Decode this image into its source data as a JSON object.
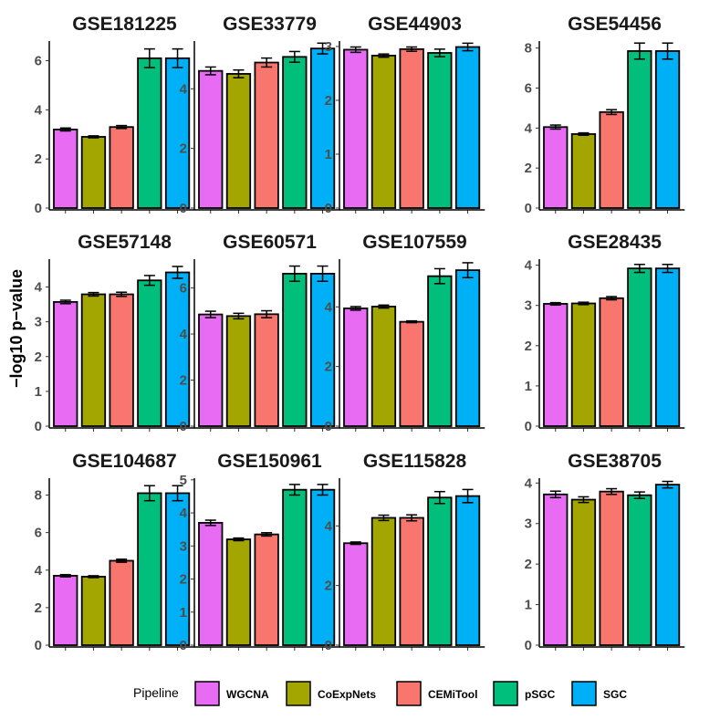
{
  "chart_data": {
    "type": "bar",
    "ylabel": "−log10 p−value",
    "legend": {
      "title": "Pipeline",
      "position": "bottom",
      "items": [
        {
          "name": "WGCNA",
          "color": "#E76BF3"
        },
        {
          "name": "CoExpNets",
          "color": "#A3A500"
        },
        {
          "name": "CEMiTool",
          "color": "#F8766D"
        },
        {
          "name": "pSGC",
          "color": "#00BF7D"
        },
        {
          "name": "SGC",
          "color": "#00B0F6"
        }
      ]
    },
    "panels": [
      {
        "title": "GSE181225",
        "ylim": [
          0,
          6.8
        ],
        "ticks": [
          0,
          2,
          4,
          6
        ],
        "values": [
          3.2,
          2.9,
          3.3,
          6.1,
          6.1
        ],
        "errors": [
          0.06,
          0.04,
          0.06,
          0.38,
          0.38
        ]
      },
      {
        "title": "GSE33779",
        "ylim": [
          0,
          5.6
        ],
        "ticks": [
          0,
          2,
          4
        ],
        "values": [
          4.6,
          4.5,
          4.88,
          5.07,
          5.35
        ],
        "errors": [
          0.13,
          0.13,
          0.15,
          0.18,
          0.18
        ]
      },
      {
        "title": "GSE44903",
        "ylim": [
          0,
          3.1
        ],
        "ticks": [
          0,
          1,
          2,
          3
        ],
        "values": [
          2.94,
          2.83,
          2.95,
          2.88,
          2.99
        ],
        "errors": [
          0.05,
          0.03,
          0.04,
          0.07,
          0.07
        ]
      },
      {
        "title": "GSE54456",
        "ylim": [
          0,
          8.35
        ],
        "ticks": [
          0,
          2,
          4,
          6,
          8
        ],
        "values": [
          4.05,
          3.7,
          4.8,
          7.85,
          7.85
        ],
        "errors": [
          0.1,
          0.06,
          0.12,
          0.4,
          0.4
        ]
      },
      {
        "title": "GSE57148",
        "ylim": [
          0,
          4.8
        ],
        "ticks": [
          0,
          1,
          2,
          3,
          4
        ],
        "values": [
          3.57,
          3.79,
          3.79,
          4.19,
          4.42
        ],
        "errors": [
          0.05,
          0.05,
          0.06,
          0.14,
          0.17
        ]
      },
      {
        "title": "GSE60571",
        "ylim": [
          0,
          7.25
        ],
        "ticks": [
          0,
          2,
          4,
          6
        ],
        "values": [
          4.85,
          4.78,
          4.86,
          6.62,
          6.62
        ],
        "errors": [
          0.14,
          0.12,
          0.15,
          0.33,
          0.33
        ]
      },
      {
        "title": "GSE107559",
        "ylim": [
          0,
          5.6
        ],
        "ticks": [
          0,
          2,
          4
        ],
        "values": [
          3.95,
          4.01,
          3.5,
          5.03,
          5.23
        ],
        "errors": [
          0.06,
          0.05,
          0.03,
          0.25,
          0.25
        ]
      },
      {
        "title": "GSE28435",
        "ylim": [
          0,
          4.15
        ],
        "ticks": [
          0,
          1,
          2,
          3,
          4
        ],
        "values": [
          3.04,
          3.05,
          3.18,
          3.92,
          3.92
        ],
        "errors": [
          0.03,
          0.03,
          0.04,
          0.1,
          0.1
        ]
      },
      {
        "title": "GSE104687",
        "ylim": [
          0,
          8.9
        ],
        "ticks": [
          0,
          2,
          4,
          6,
          8
        ],
        "values": [
          3.7,
          3.65,
          4.5,
          8.1,
          8.1
        ],
        "errors": [
          0.06,
          0.05,
          0.08,
          0.4,
          0.4
        ]
      },
      {
        "title": "GSE150961",
        "ylim": [
          0,
          5.05
        ],
        "ticks": [
          0,
          1,
          2,
          3,
          4,
          5
        ],
        "values": [
          3.7,
          3.2,
          3.35,
          4.7,
          4.7
        ],
        "errors": [
          0.08,
          0.04,
          0.05,
          0.16,
          0.16
        ]
      },
      {
        "title": "GSE115828",
        "ylim": [
          0,
          5.6
        ],
        "ticks": [
          0,
          2,
          4
        ],
        "values": [
          3.42,
          4.27,
          4.27,
          4.95,
          5.0
        ],
        "errors": [
          0.04,
          0.09,
          0.1,
          0.2,
          0.22
        ]
      },
      {
        "title": "GSE38705",
        "ylim": [
          0,
          4.12
        ],
        "ticks": [
          0,
          1,
          2,
          3,
          4
        ],
        "values": [
          3.72,
          3.59,
          3.79,
          3.7,
          3.96
        ],
        "errors": [
          0.08,
          0.07,
          0.07,
          0.08,
          0.08
        ]
      }
    ]
  }
}
